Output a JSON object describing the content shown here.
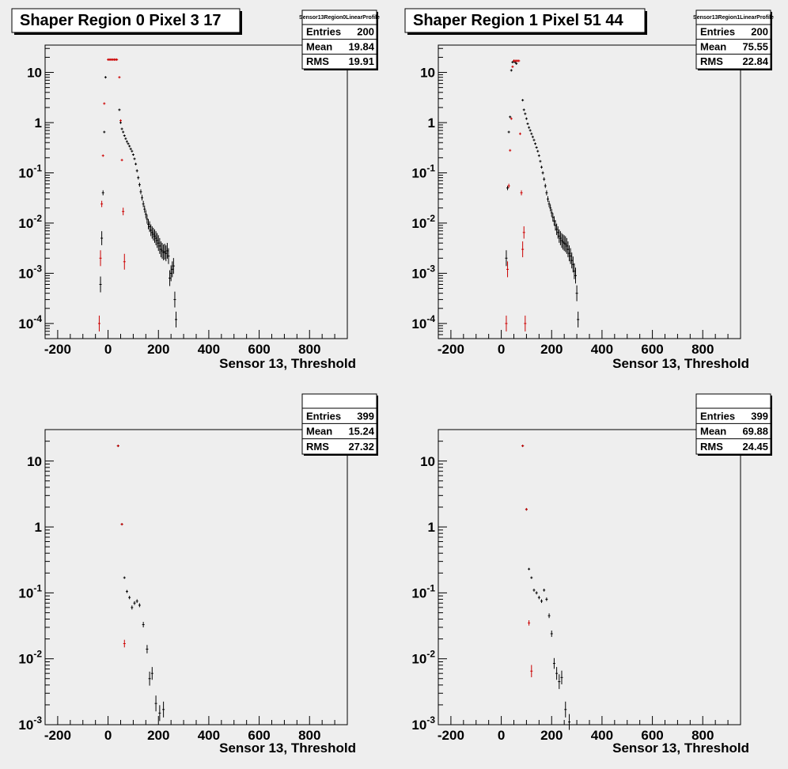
{
  "chart_data": [
    {
      "type": "scatter",
      "title": "Shaper Region 0 Pixel 3 17",
      "xlabel": "Sensor 13, Threshold",
      "ylabel": "",
      "xlim": [
        -250,
        950
      ],
      "ylim": [
        5e-05,
        35
      ],
      "yscale": "log",
      "x_ticks": [
        -200,
        0,
        200,
        400,
        600,
        800
      ],
      "y_ticks": [
        {
          "base": "10",
          "exp": "-4",
          "value": 0.0001
        },
        {
          "base": "10",
          "exp": "-3",
          "value": 0.001
        },
        {
          "base": "10",
          "exp": "-2",
          "value": 0.01
        },
        {
          "base": "10",
          "exp": "-1",
          "value": 0.1
        },
        {
          "base": "1",
          "exp": "",
          "value": 1
        },
        {
          "base": "10",
          "exp": "",
          "value": 10
        }
      ],
      "stats": {
        "name": "Sensor13Region0LinearProfile",
        "rows": [
          {
            "label": "Entries",
            "value": "200"
          },
          {
            "label": "Mean",
            "value": "19.84"
          },
          {
            "label": "RMS",
            "value": "19.91"
          }
        ]
      },
      "series": [
        {
          "color": "#000000",
          "points": [
            [
              -30,
              0.0006
            ],
            [
              -25,
              0.005
            ],
            [
              -20,
              0.04
            ],
            [
              -15,
              0.65
            ],
            [
              -10,
              8
            ],
            [
              45,
              1.8
            ],
            [
              50,
              1.0
            ],
            [
              55,
              0.75
            ],
            [
              60,
              0.65
            ],
            [
              65,
              0.55
            ],
            [
              70,
              0.48
            ],
            [
              75,
              0.42
            ],
            [
              80,
              0.38
            ],
            [
              85,
              0.34
            ],
            [
              90,
              0.3
            ],
            [
              95,
              0.27
            ],
            [
              100,
              0.23
            ],
            [
              105,
              0.19
            ],
            [
              110,
              0.15
            ],
            [
              115,
              0.11
            ],
            [
              120,
              0.08
            ],
            [
              125,
              0.058
            ],
            [
              130,
              0.042
            ],
            [
              135,
              0.032
            ],
            [
              140,
              0.024
            ],
            [
              145,
              0.019
            ],
            [
              150,
              0.015
            ],
            [
              155,
              0.012
            ],
            [
              160,
              0.0095
            ],
            [
              165,
              0.0085
            ],
            [
              170,
              0.0072
            ],
            [
              175,
              0.0065
            ],
            [
              180,
              0.006
            ],
            [
              185,
              0.0055
            ],
            [
              190,
              0.005
            ],
            [
              195,
              0.0045
            ],
            [
              200,
              0.004
            ],
            [
              205,
              0.0035
            ],
            [
              210,
              0.003
            ],
            [
              215,
              0.0028
            ],
            [
              220,
              0.0026
            ],
            [
              225,
              0.0027
            ],
            [
              230,
              0.0025
            ],
            [
              235,
              0.0028
            ],
            [
              240,
              0.0022
            ],
            [
              245,
              0.0008
            ],
            [
              250,
              0.001
            ],
            [
              255,
              0.0012
            ],
            [
              260,
              0.0014
            ],
            [
              265,
              0.0003
            ],
            [
              270,
              0.00012
            ]
          ]
        },
        {
          "color": "#cc0000",
          "points": [
            [
              -35,
              0.0001
            ],
            [
              -30,
              0.002
            ],
            [
              -25,
              0.024
            ],
            [
              -20,
              0.22
            ],
            [
              -15,
              2.4
            ],
            [
              0,
              18
            ],
            [
              5,
              18
            ],
            [
              10,
              18
            ],
            [
              15,
              18
            ],
            [
              20,
              18
            ],
            [
              25,
              18
            ],
            [
              30,
              18
            ],
            [
              35,
              18
            ],
            [
              45,
              8
            ],
            [
              50,
              1.1
            ],
            [
              55,
              0.18
            ],
            [
              60,
              0.017
            ],
            [
              65,
              0.0017
            ]
          ]
        }
      ]
    },
    {
      "type": "scatter",
      "title": "Shaper Region 1 Pixel 51 44",
      "xlabel": "Sensor 13, Threshold",
      "ylabel": "",
      "xlim": [
        -250,
        950
      ],
      "ylim": [
        5e-05,
        35
      ],
      "yscale": "log",
      "x_ticks": [
        -200,
        0,
        200,
        400,
        600,
        800
      ],
      "y_ticks": [
        {
          "base": "10",
          "exp": "-4",
          "value": 0.0001
        },
        {
          "base": "10",
          "exp": "-3",
          "value": 0.001
        },
        {
          "base": "10",
          "exp": "-2",
          "value": 0.01
        },
        {
          "base": "10",
          "exp": "-1",
          "value": 0.1
        },
        {
          "base": "1",
          "exp": "",
          "value": 1
        },
        {
          "base": "10",
          "exp": "",
          "value": 10
        }
      ],
      "stats": {
        "name": "Sensor13Region1LinearProfile",
        "rows": [
          {
            "label": "Entries",
            "value": "200"
          },
          {
            "label": "Mean",
            "value": "75.55"
          },
          {
            "label": "RMS",
            "value": "22.84"
          }
        ]
      },
      "series": [
        {
          "color": "#000000",
          "points": [
            [
              20,
              0.002
            ],
            [
              25,
              0.05
            ],
            [
              30,
              0.65
            ],
            [
              35,
              1.3
            ],
            [
              40,
              11
            ],
            [
              45,
              16
            ],
            [
              50,
              17
            ],
            [
              55,
              16
            ],
            [
              60,
              15
            ],
            [
              85,
              2.8
            ],
            [
              90,
              1.8
            ],
            [
              95,
              1.5
            ],
            [
              100,
              1.2
            ],
            [
              105,
              0.95
            ],
            [
              110,
              0.8
            ],
            [
              115,
              0.7
            ],
            [
              120,
              0.6
            ],
            [
              125,
              0.52
            ],
            [
              130,
              0.45
            ],
            [
              135,
              0.38
            ],
            [
              140,
              0.32
            ],
            [
              145,
              0.27
            ],
            [
              150,
              0.22
            ],
            [
              155,
              0.17
            ],
            [
              160,
              0.13
            ],
            [
              165,
              0.1
            ],
            [
              170,
              0.075
            ],
            [
              175,
              0.055
            ],
            [
              180,
              0.04
            ],
            [
              185,
              0.03
            ],
            [
              190,
              0.024
            ],
            [
              195,
              0.02
            ],
            [
              200,
              0.016
            ],
            [
              205,
              0.013
            ],
            [
              210,
              0.011
            ],
            [
              215,
              0.009
            ],
            [
              220,
              0.0075
            ],
            [
              225,
              0.0065
            ],
            [
              230,
              0.0055
            ],
            [
              235,
              0.005
            ],
            [
              240,
              0.0045
            ],
            [
              245,
              0.0042
            ],
            [
              250,
              0.004
            ],
            [
              255,
              0.0038
            ],
            [
              260,
              0.0035
            ],
            [
              265,
              0.003
            ],
            [
              270,
              0.0025
            ],
            [
              275,
              0.0022
            ],
            [
              280,
              0.0018
            ],
            [
              285,
              0.0015
            ],
            [
              290,
              0.0011
            ],
            [
              295,
              0.0009
            ],
            [
              300,
              0.0004
            ],
            [
              305,
              0.00012
            ]
          ]
        },
        {
          "color": "#cc0000",
          "points": [
            [
              20,
              0.0001
            ],
            [
              25,
              0.0012
            ],
            [
              30,
              0.055
            ],
            [
              35,
              0.28
            ],
            [
              40,
              1.2
            ],
            [
              45,
              13
            ],
            [
              50,
              17
            ],
            [
              55,
              17
            ],
            [
              60,
              17
            ],
            [
              65,
              17
            ],
            [
              70,
              17
            ],
            [
              75,
              0.6
            ],
            [
              80,
              0.04
            ],
            [
              85,
              0.003
            ],
            [
              90,
              0.0065
            ],
            [
              95,
              0.0001
            ]
          ]
        }
      ]
    },
    {
      "type": "scatter",
      "title": "",
      "xlabel": "Sensor 13, Threshold",
      "ylabel": "",
      "xlim": [
        -250,
        950
      ],
      "ylim": [
        0.001,
        30
      ],
      "yscale": "log",
      "x_ticks": [
        -200,
        0,
        200,
        400,
        600,
        800
      ],
      "y_ticks": [
        {
          "base": "10",
          "exp": "-3",
          "value": 0.001
        },
        {
          "base": "10",
          "exp": "-2",
          "value": 0.01
        },
        {
          "base": "10",
          "exp": "-1",
          "value": 0.1
        },
        {
          "base": "1",
          "exp": "",
          "value": 1
        },
        {
          "base": "10",
          "exp": "",
          "value": 10
        }
      ],
      "stats": {
        "name": "",
        "rows": [
          {
            "label": "Entries",
            "value": "399"
          },
          {
            "label": "Mean",
            "value": "15.24"
          },
          {
            "label": "RMS",
            "value": "27.32"
          }
        ]
      },
      "series": [
        {
          "color": "#000000",
          "points": [
            [
              40,
              17
            ],
            [
              55,
              1.1
            ],
            [
              65,
              0.17
            ],
            [
              75,
              0.105
            ],
            [
              85,
              0.085
            ],
            [
              95,
              0.06
            ],
            [
              105,
              0.07
            ],
            [
              115,
              0.075
            ],
            [
              125,
              0.065
            ],
            [
              140,
              0.033
            ],
            [
              155,
              0.014
            ],
            [
              165,
              0.005
            ],
            [
              175,
              0.006
            ],
            [
              190,
              0.0021
            ],
            [
              205,
              0.0015
            ],
            [
              220,
              0.0017
            ]
          ]
        },
        {
          "color": "#cc0000",
          "points": [
            [
              40,
              17
            ],
            [
              55,
              1.1
            ],
            [
              65,
              0.017
            ]
          ]
        }
      ]
    },
    {
      "type": "scatter",
      "title": "",
      "xlabel": "Sensor 13, Threshold",
      "ylabel": "",
      "xlim": [
        -250,
        950
      ],
      "ylim": [
        0.001,
        30
      ],
      "yscale": "log",
      "x_ticks": [
        -200,
        0,
        200,
        400,
        600,
        800
      ],
      "y_ticks": [
        {
          "base": "10",
          "exp": "-3",
          "value": 0.001
        },
        {
          "base": "10",
          "exp": "-2",
          "value": 0.01
        },
        {
          "base": "10",
          "exp": "-1",
          "value": 0.1
        },
        {
          "base": "1",
          "exp": "",
          "value": 1
        },
        {
          "base": "10",
          "exp": "",
          "value": 10
        }
      ],
      "stats": {
        "name": "",
        "rows": [
          {
            "label": "Entries",
            "value": "399"
          },
          {
            "label": "Mean",
            "value": "69.88"
          },
          {
            "label": "RMS",
            "value": "24.45"
          }
        ]
      },
      "series": [
        {
          "color": "#000000",
          "points": [
            [
              85,
              17
            ],
            [
              100,
              1.85
            ],
            [
              110,
              0.23
            ],
            [
              120,
              0.17
            ],
            [
              130,
              0.11
            ],
            [
              140,
              0.1
            ],
            [
              150,
              0.085
            ],
            [
              160,
              0.075
            ],
            [
              170,
              0.11
            ],
            [
              180,
              0.08
            ],
            [
              190,
              0.045
            ],
            [
              200,
              0.024
            ],
            [
              210,
              0.0085
            ],
            [
              220,
              0.006
            ],
            [
              230,
              0.0045
            ],
            [
              240,
              0.0052
            ],
            [
              255,
              0.0017
            ],
            [
              270,
              0.0011
            ]
          ]
        },
        {
          "color": "#cc0000",
          "points": [
            [
              85,
              17
            ],
            [
              100,
              1.85
            ],
            [
              110,
              0.035
            ],
            [
              120,
              0.0065
            ]
          ]
        }
      ]
    }
  ]
}
